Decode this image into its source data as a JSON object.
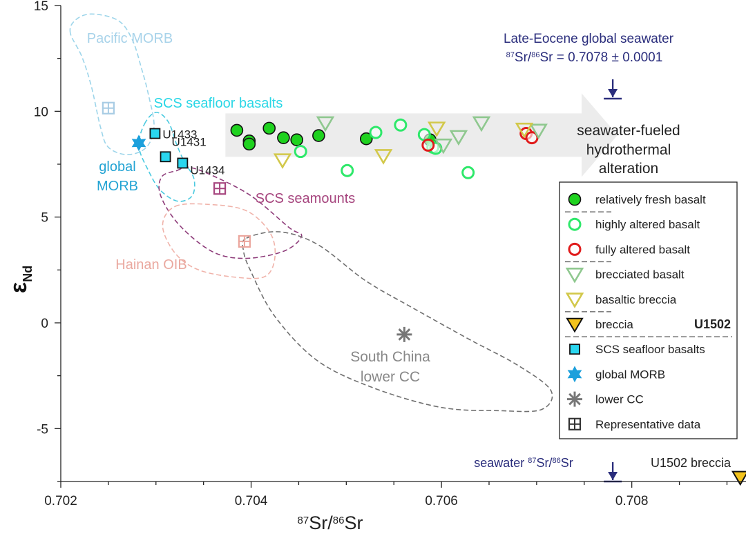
{
  "chart_data": {
    "type": "scatter",
    "xlabel": "87Sr/86Sr",
    "xlabel_parts": {
      "sup": "87",
      "mid": "Sr/",
      "sup2": "86",
      "end": "Sr"
    },
    "ylabel": "εNd",
    "ylabel_parts": {
      "main": "ε",
      "sub": "Nd"
    },
    "xlim": [
      0.702,
      0.7092
    ],
    "ylim": [
      -7.5,
      15
    ],
    "x_ticks": [
      {
        "value": 0.702,
        "label": "0.702"
      },
      {
        "value": 0.704,
        "label": "0.704"
      },
      {
        "value": 0.706,
        "label": "0.706"
      },
      {
        "value": 0.708,
        "label": "0.708"
      }
    ],
    "y_ticks": [
      {
        "value": 15,
        "label": "15"
      },
      {
        "value": 10,
        "label": "10"
      },
      {
        "value": 5,
        "label": "5"
      },
      {
        "value": 0,
        "label": "0"
      },
      {
        "value": -5,
        "label": "-5"
      }
    ],
    "series": [
      {
        "name": "relatively fresh basalt",
        "marker": "circle-filled",
        "color": "#1fd21f",
        "edge": "#111111",
        "x": [
          0.70385,
          0.70398,
          0.70398,
          0.70419,
          0.70434,
          0.70448,
          0.70471,
          0.70521,
          0.70588
        ],
        "y": [
          9.1,
          8.6,
          8.45,
          9.2,
          8.75,
          8.65,
          8.85,
          8.7,
          8.65
        ]
      },
      {
        "name": "highly altered basalt",
        "marker": "circle-open",
        "color": "#2ee86a",
        "x": [
          0.70452,
          0.70501,
          0.70531,
          0.70557,
          0.70582,
          0.70591,
          0.70594,
          0.70628
        ],
        "y": [
          8.1,
          7.2,
          9.0,
          9.35,
          8.9,
          8.3,
          8.25,
          7.1
        ]
      },
      {
        "name": "fully altered basalt",
        "marker": "circle-open",
        "color": "#e01b1b",
        "x": [
          0.70586,
          0.70689,
          0.70695
        ],
        "y": [
          8.4,
          8.95,
          8.75
        ]
      },
      {
        "name": "brecciated basalt",
        "marker": "triangle-down-open",
        "color": "#8fc88f",
        "x": [
          0.70478,
          0.70602,
          0.70618,
          0.70642,
          0.70702
        ],
        "y": [
          9.45,
          8.4,
          8.8,
          9.45,
          9.1
        ]
      },
      {
        "name": "basaltic breccia",
        "marker": "triangle-down-open",
        "color": "#d2c84a",
        "x": [
          0.70433,
          0.70539,
          0.70595,
          0.70687
        ],
        "y": [
          7.7,
          7.9,
          9.2,
          9.15
        ]
      },
      {
        "name": "breccia",
        "marker": "triangle-down-filled",
        "color": "#f3c31c",
        "edge": "#111111",
        "x": [
          0.70914
        ],
        "y": [
          -7.3
        ]
      }
    ],
    "sample_points": [
      {
        "label": "U1433",
        "x": 0.70299,
        "y": 8.95
      },
      {
        "label": "U1431",
        "x": 0.7031,
        "y": 7.85
      },
      {
        "label": "U1434",
        "x": 0.70328,
        "y": 7.55
      }
    ],
    "global_morb_point": {
      "x": 0.70282,
      "y": 8.5
    },
    "lower_cc_point": {
      "x": 0.70561,
      "y": -0.55
    },
    "representative_points": [
      {
        "name": "Pacific MORB",
        "x": 0.7025,
        "y": 10.15,
        "color": "#a8cce4"
      },
      {
        "name": "SCS seamounts",
        "x": 0.70367,
        "y": 6.35,
        "color": "#a6457e"
      },
      {
        "name": "Hainan OIB",
        "x": 0.70393,
        "y": 3.85,
        "color": "#eba69d"
      }
    ],
    "fields": [
      {
        "name": "Pacific MORB",
        "color": "#9dd5ea",
        "path": [
          [
            0.7021,
            13.7
          ],
          [
            0.70215,
            14.3
          ],
          [
            0.70232,
            14.6
          ],
          [
            0.7026,
            14.3
          ],
          [
            0.70275,
            13.4
          ],
          [
            0.70285,
            12.0
          ],
          [
            0.70292,
            10.8
          ],
          [
            0.70298,
            9.3
          ],
          [
            0.7029,
            8.3
          ],
          [
            0.7027,
            7.95
          ],
          [
            0.7025,
            8.3
          ],
          [
            0.70242,
            9.2
          ],
          [
            0.70232,
            11.2
          ],
          [
            0.70222,
            12.6
          ]
        ]
      },
      {
        "name": "SCS seafloor basalts",
        "color": "#4ccae0",
        "path": [
          [
            0.70288,
            9.4
          ],
          [
            0.703,
            9.95
          ],
          [
            0.70313,
            9.5
          ],
          [
            0.70322,
            8.4
          ],
          [
            0.7033,
            7.6
          ],
          [
            0.7034,
            6.8
          ],
          [
            0.70338,
            6.0
          ],
          [
            0.70323,
            5.75
          ],
          [
            0.70305,
            6.25
          ],
          [
            0.70292,
            7.2
          ],
          [
            0.70282,
            8.35
          ]
        ]
      },
      {
        "name": "SCS seamounts",
        "color": "#8e3c7a",
        "path": [
          [
            0.70322,
            7.2
          ],
          [
            0.70335,
            7.35
          ],
          [
            0.7036,
            6.95
          ],
          [
            0.704,
            6.0
          ],
          [
            0.7044,
            4.5
          ],
          [
            0.70453,
            4.1
          ],
          [
            0.70435,
            3.4
          ],
          [
            0.70395,
            3.05
          ],
          [
            0.7036,
            3.35
          ],
          [
            0.70325,
            4.6
          ],
          [
            0.70305,
            6.0
          ],
          [
            0.70306,
            6.9
          ]
        ]
      },
      {
        "name": "Hainan OIB",
        "color": "#f0b3aa",
        "path": [
          [
            0.7032,
            5.5
          ],
          [
            0.70355,
            5.6
          ],
          [
            0.70395,
            5.3
          ],
          [
            0.7042,
            4.25
          ],
          [
            0.70425,
            3.1
          ],
          [
            0.70415,
            2.2
          ],
          [
            0.70385,
            2.15
          ],
          [
            0.70345,
            2.5
          ],
          [
            0.7032,
            3.3
          ],
          [
            0.70307,
            4.6
          ]
        ]
      },
      {
        "name": "South China lower CC",
        "color": "#707070",
        "path": [
          [
            0.70395,
            4.0
          ],
          [
            0.7043,
            4.3
          ],
          [
            0.7047,
            3.7
          ],
          [
            0.7052,
            2.0
          ],
          [
            0.7057,
            0.7
          ],
          [
            0.7063,
            -0.8
          ],
          [
            0.7068,
            -2.0
          ],
          [
            0.70715,
            -3.2
          ],
          [
            0.70705,
            -4.1
          ],
          [
            0.7066,
            -4.15
          ],
          [
            0.706,
            -4.0
          ],
          [
            0.7053,
            -3.1
          ],
          [
            0.7047,
            -1.8
          ],
          [
            0.70425,
            0.3
          ],
          [
            0.704,
            2.4
          ],
          [
            0.70392,
            3.4
          ]
        ]
      }
    ],
    "annotations": {
      "pacific_morb": "Pacific MORB",
      "scs_seafloor_basalts": "SCS seafloor basalts",
      "global_morb_line1": "global",
      "global_morb_line2": "MORB",
      "scs_seamounts": "SCS seamounts",
      "hainan_oib": "Hainan OIB",
      "south_china_line1": "South China",
      "south_china_line2": "lower CC",
      "arrow_line1": "seawater-fueled",
      "arrow_line2": "hydrothermal",
      "arrow_line3": "alteration",
      "late_eocene_line1": "Late-Eocene global seawater",
      "late_eocene_line2_sup1": "87",
      "late_eocene_line2_a": "Sr/",
      "late_eocene_line2_sup2": "86",
      "late_eocene_line2_b": "Sr = 0.7078 ± 0.0001",
      "seawater_a": "seawater ",
      "seawater_sup1": "87",
      "seawater_b": "Sr/",
      "seawater_sup2": "86",
      "seawater_c": "Sr",
      "u1502_breccia": "U1502 breccia"
    },
    "seawater_value": 0.7078,
    "seawater_uncertainty": 0.0001,
    "arrow_range": {
      "x": [
        0.70373,
        0.70785
      ],
      "y": [
        6.9,
        10.85
      ]
    },
    "legend": {
      "position": "right",
      "group_label": "U1502",
      "items": [
        "relatively fresh basalt",
        "highly altered basalt",
        "fully altered basalt",
        "brecciated basalt",
        "basaltic breccia",
        "breccia",
        "SCS seafloor basalts",
        "global MORB",
        "lower CC",
        "Representative data"
      ]
    },
    "colors": {
      "navy": "#2a2d7c",
      "arrow": "#ececec",
      "cyan_square": "#2ad6ef",
      "global_morb": "#1ca0dc",
      "lower_cc": "#777777",
      "label_cyan": "#2ad7e6",
      "label_blue": "#22a3d3"
    }
  }
}
